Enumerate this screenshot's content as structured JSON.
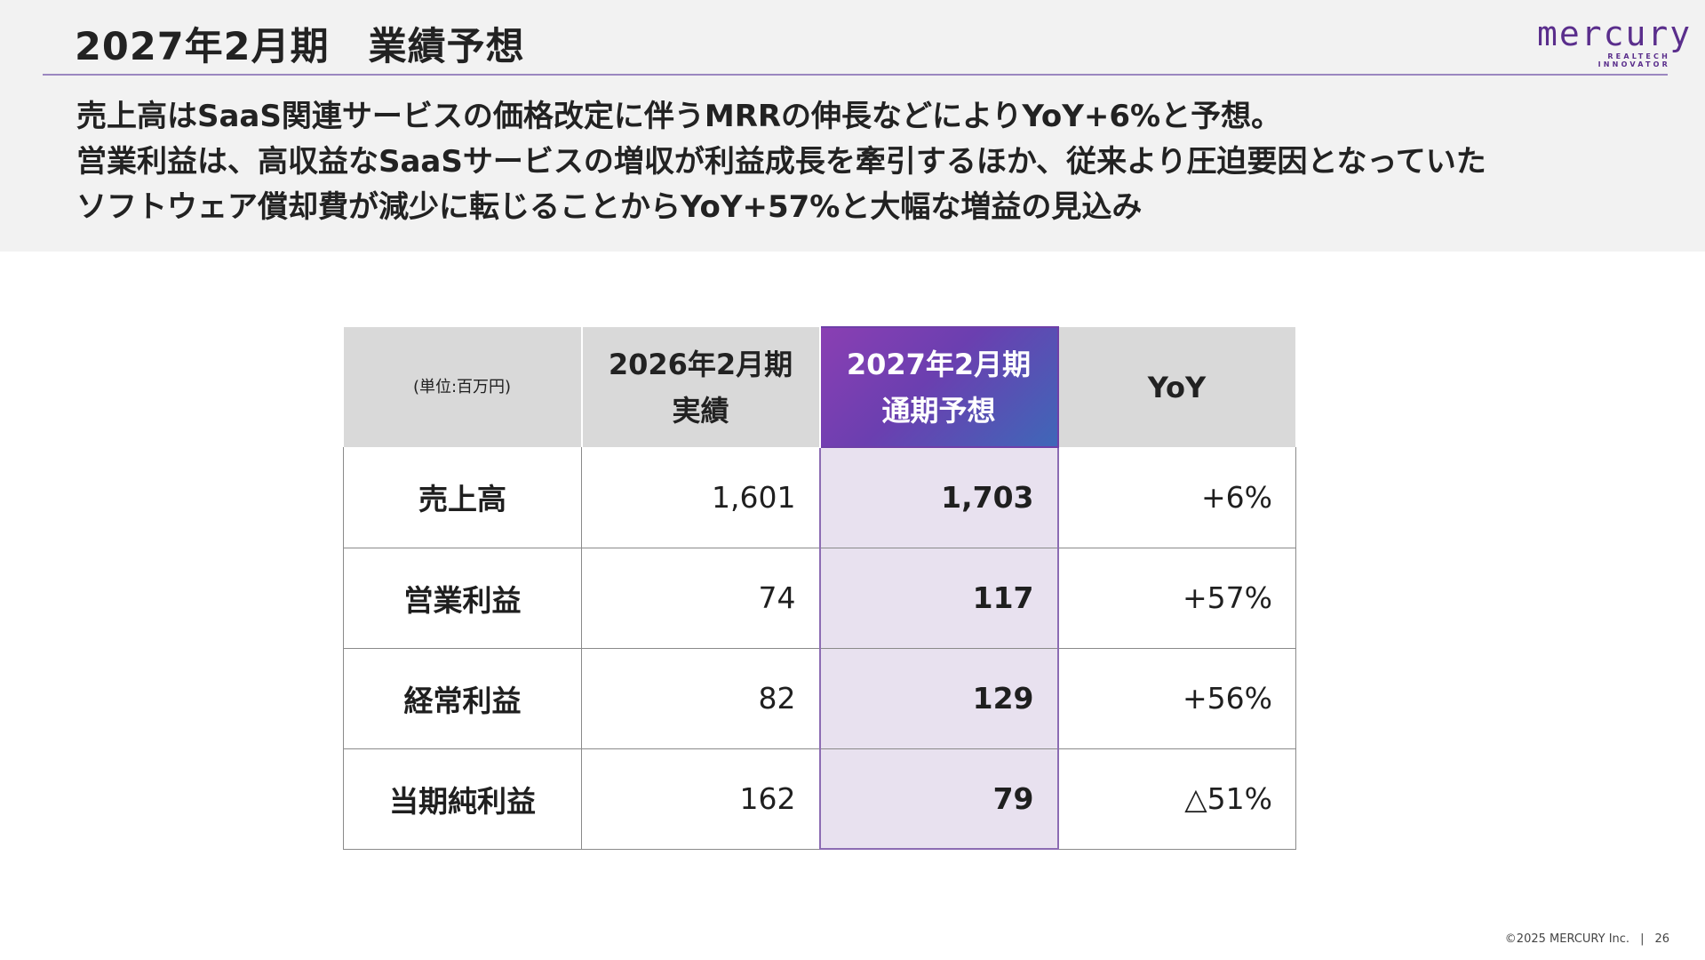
{
  "header": {
    "title": "2027年2月期　業績予想",
    "logo_word": "mercury",
    "logo_tagline": "REALTECH INNOVATOR"
  },
  "summary": {
    "lines": [
      "売上高はSaaS関連サービスの価格改定に伴うMRRの伸長などによりYoY+6%と予想。",
      "営業利益は、高収益なSaaSサービスの増収が利益成長を牽引するほか、従来より圧迫要因となっていた",
      "ソフトウェア償却費が減少に転じることからYoY+57%と大幅な増益の見込み"
    ]
  },
  "table": {
    "unit_label": "(単位:百万円)",
    "col_actual": [
      "2026年2月期",
      "実績"
    ],
    "col_forecast": [
      "2027年2月期",
      "通期予想"
    ],
    "col_yoy": "YoY",
    "rows": [
      {
        "label": "売上高",
        "actual": "1,601",
        "forecast": "1,703",
        "yoy": "+6%"
      },
      {
        "label": "営業利益",
        "actual": "74",
        "forecast": "117",
        "yoy": "+57%"
      },
      {
        "label": "経常利益",
        "actual": "82",
        "forecast": "129",
        "yoy": "+56%"
      },
      {
        "label": "当期純利益",
        "actual": "162",
        "forecast": "79",
        "yoy": "△51%"
      }
    ]
  },
  "footer": {
    "copyright": "©2025 MERCURY Inc.",
    "separator": "|",
    "page_number": "26"
  },
  "colors": {
    "accent": "#5a2e8c",
    "highlight_fill": "#e8e1ef",
    "header_gray": "#d9d9d9"
  }
}
